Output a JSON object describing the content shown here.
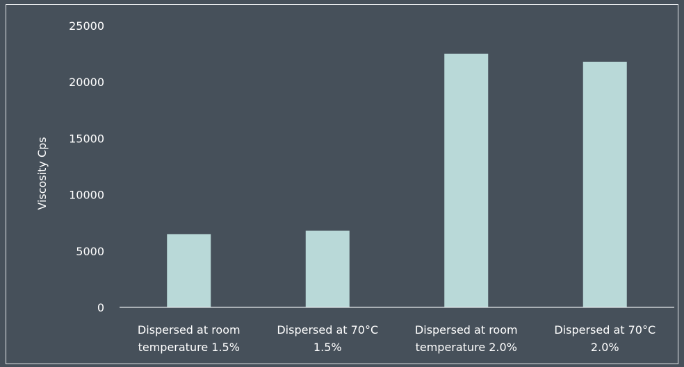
{
  "chart_data": {
    "type": "bar",
    "title": "",
    "xlabel": "",
    "ylabel": "Viscosity Cps",
    "ylim": [
      0,
      25000
    ],
    "yticks": [
      0,
      5000,
      10000,
      15000,
      20000,
      25000
    ],
    "grid": false,
    "categories": [
      [
        "Dispersed at room",
        "temperature 1.5%"
      ],
      [
        "Dispersed at 70°C",
        "1.5%"
      ],
      [
        "Dispersed at room",
        "temperature 2.0%"
      ],
      [
        "Dispersed at 70°C",
        "2.0%"
      ]
    ],
    "values": [
      6500,
      6800,
      22500,
      21800
    ]
  },
  "colors": {
    "background": "#46505a",
    "bar": "#b9d9d8",
    "axis": "#e6e9ec",
    "text": "#ffffff"
  }
}
